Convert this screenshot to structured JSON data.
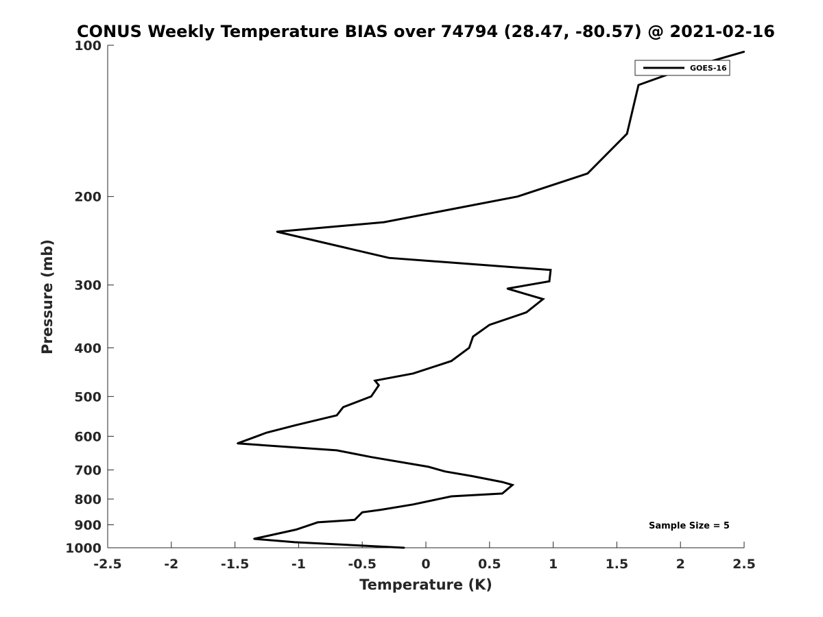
{
  "chart_data": {
    "type": "line",
    "title": "CONUS Weekly Temperature BIAS over 74794 (28.47, -80.57) @ 2021-02-16",
    "xlabel": "Temperature (K)",
    "ylabel": "Pressure (mb)",
    "xlim": [
      -2.5,
      2.5
    ],
    "ylim": [
      100,
      1000
    ],
    "yscale": "log",
    "y_reversed": true,
    "x_ticks": [
      "-2.5",
      "-2",
      "-1.5",
      "-1",
      "-0.5",
      "0",
      "0.5",
      "1",
      "1.5",
      "2",
      "2.5"
    ],
    "y_ticks": [
      "100",
      "200",
      "300",
      "400",
      "500",
      "600",
      "700",
      "800",
      "900",
      "1000"
    ],
    "grid": false,
    "legend_position": "top-right",
    "annotation": "Sample Size = 5",
    "series": [
      {
        "name": "GOES-16",
        "color": "#000000",
        "points": [
          [
            2.5,
            103
          ],
          [
            2.0,
            112
          ],
          [
            1.67,
            120
          ],
          [
            1.58,
            150
          ],
          [
            1.27,
            180
          ],
          [
            0.72,
            200
          ],
          [
            -0.33,
            225
          ],
          [
            -1.17,
            235
          ],
          [
            -0.29,
            265
          ],
          [
            0.98,
            280
          ],
          [
            0.97,
            295
          ],
          [
            0.64,
            305
          ],
          [
            0.92,
            320
          ],
          [
            0.79,
            340
          ],
          [
            0.5,
            360
          ],
          [
            0.37,
            380
          ],
          [
            0.34,
            400
          ],
          [
            0.2,
            425
          ],
          [
            -0.1,
            450
          ],
          [
            -0.4,
            465
          ],
          [
            -0.37,
            475
          ],
          [
            -0.43,
            500
          ],
          [
            -0.65,
            525
          ],
          [
            -0.7,
            545
          ],
          [
            -1.02,
            570
          ],
          [
            -1.25,
            590
          ],
          [
            -1.48,
            620
          ],
          [
            -0.7,
            640
          ],
          [
            -0.43,
            660
          ],
          [
            0.02,
            690
          ],
          [
            0.15,
            705
          ],
          [
            0.36,
            720
          ],
          [
            0.6,
            740
          ],
          [
            0.68,
            750
          ],
          [
            0.6,
            780
          ],
          [
            0.2,
            790
          ],
          [
            -0.1,
            820
          ],
          [
            -0.35,
            840
          ],
          [
            -0.5,
            850
          ],
          [
            -0.56,
            880
          ],
          [
            -0.85,
            890
          ],
          [
            -1.02,
            920
          ],
          [
            -1.35,
            960
          ],
          [
            -1.03,
            975
          ],
          [
            -0.17,
            1000
          ]
        ]
      }
    ]
  }
}
